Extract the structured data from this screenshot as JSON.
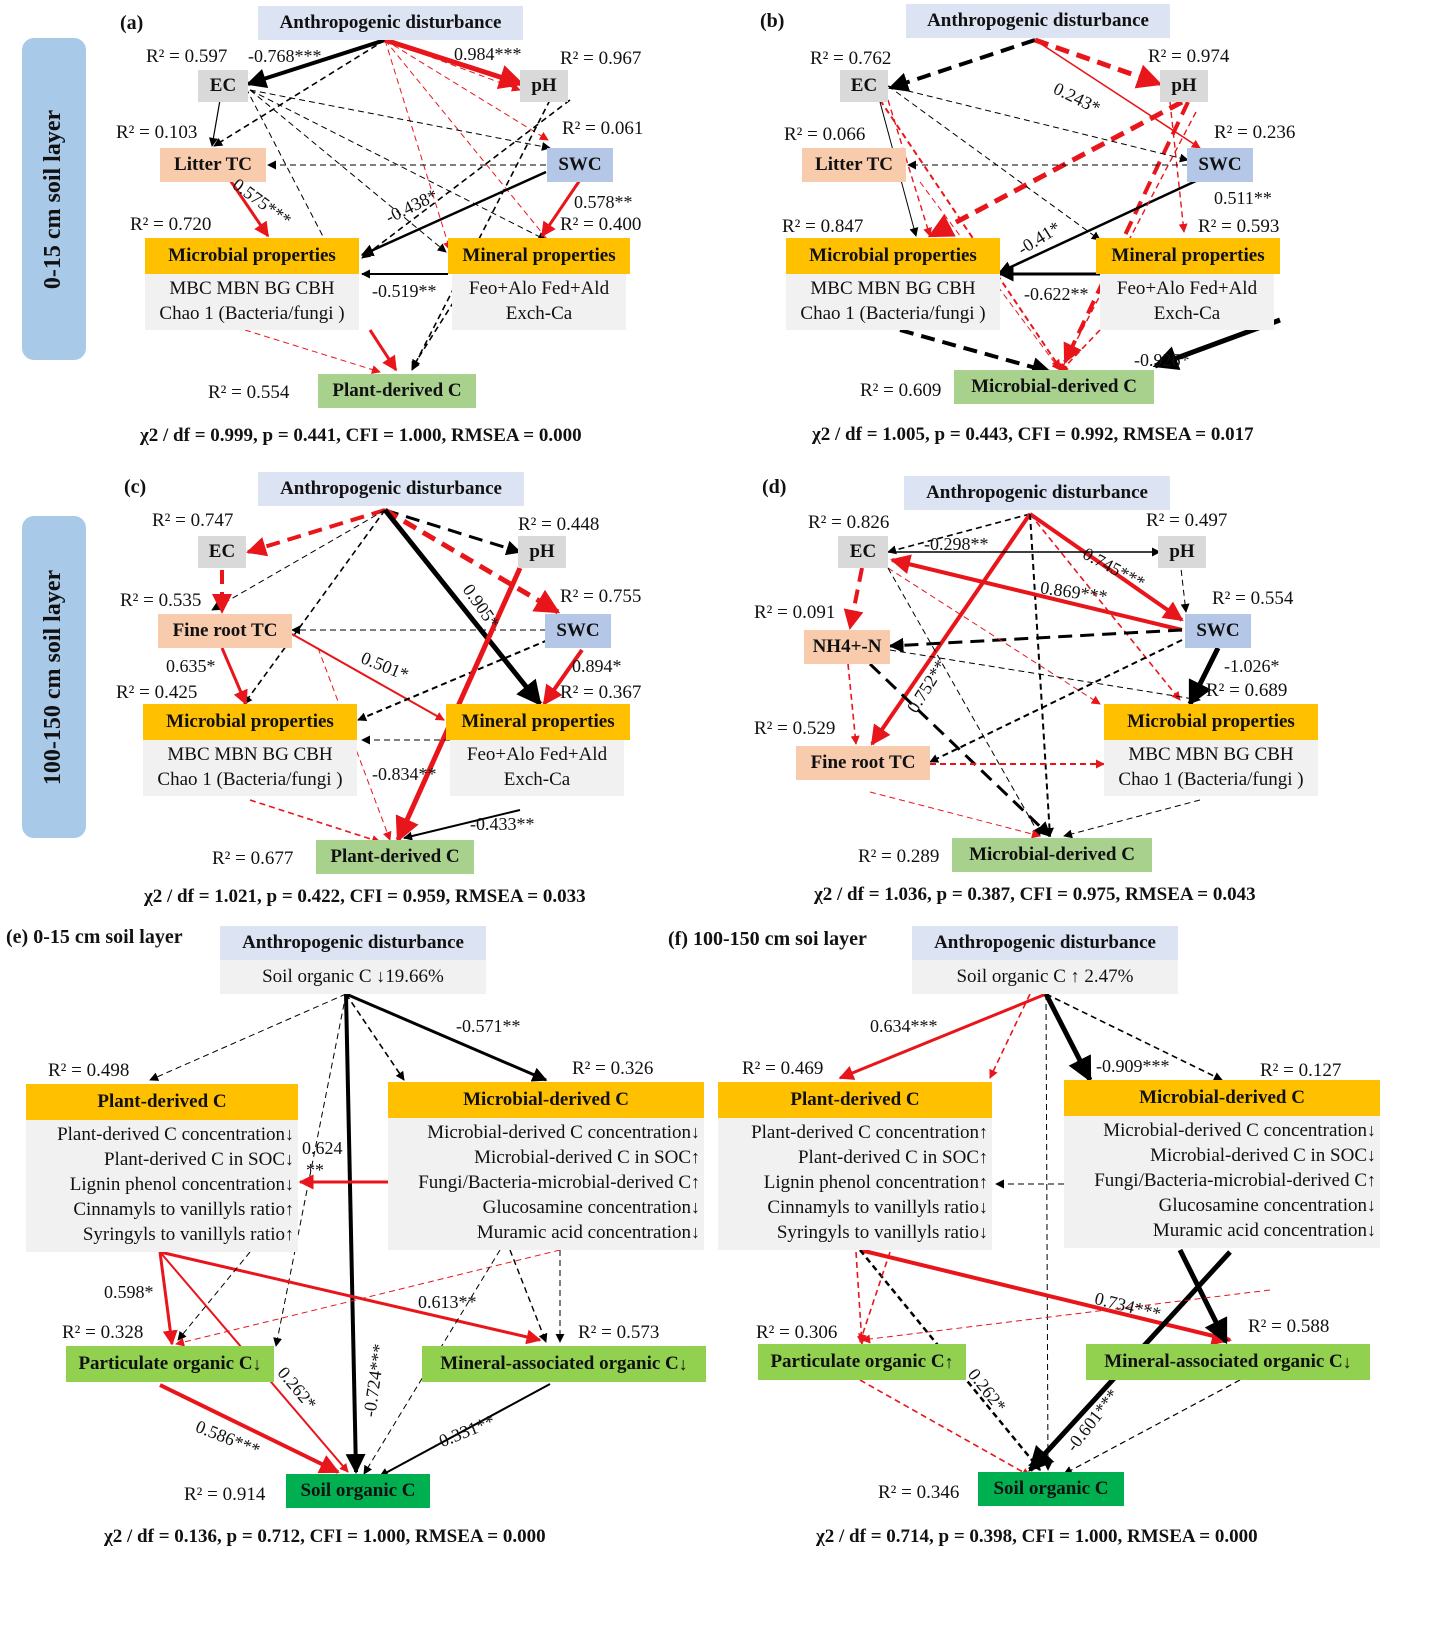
{
  "side_labels": {
    "top": "0-15 cm soil layer",
    "bottom": "100-150 cm soil layer"
  },
  "colors": {
    "disturbance": "#dce3f2",
    "soil_prop": "#d9d9d9",
    "litter": "#f8cbad",
    "swc": "#b4c7e7",
    "orange": "#ffc000",
    "green_light": "#a9d18e",
    "green_mid": "#92d050",
    "green_dark": "#00b050",
    "red": "#e8161b",
    "black": "#000000"
  },
  "common": {
    "disturbance": "Anthropogenic disturbance",
    "ec": "EC",
    "ph": "pH",
    "swc": "SWC",
    "microbial": "Microbial properties",
    "mineral": "Mineral properties",
    "micro_sub1": "MBC MBN BG CBH",
    "micro_sub2": "Chao 1 (Bacteria/fungi )",
    "mineral_sub1": "Feo+Alo Fed+Ald",
    "mineral_sub2": "Exch-Ca",
    "plant_c": "Plant-derived C",
    "microbial_c": "Microbial-derived C",
    "litter_tc": "Litter TC",
    "fine_root_tc": "Fine root TC",
    "nh4": "NH4+-N"
  },
  "panel_a": {
    "label": "(a)",
    "r2": {
      "ec": "R² = 0.597",
      "ph": "R² = 0.967",
      "litter": "R² = 0.103",
      "swc": "R² = 0.061",
      "micro": "R² = 0.720",
      "mineral": "R² = 0.400",
      "plant": "R² = 0.554"
    },
    "coefs": [
      "-0.768***",
      "0.984***",
      "0.575***",
      "-0.438*",
      "0.578**",
      "-0.519**"
    ],
    "fit": "χ2 / df = 0.999, p = 0.441, CFI = 1.000, RMSEA = 0.000"
  },
  "panel_b": {
    "label": "(b)",
    "r2": {
      "ec": "R² = 0.762",
      "ph": "R² = 0.974",
      "litter": "R² = 0.066",
      "swc": "R² = 0.236",
      "micro": "R² = 0.847",
      "mineral": "R² = 0.593",
      "mcarbon": "R² = 0.609"
    },
    "coefs": [
      "0.243*",
      "0.511**",
      "-0.41*",
      "-0.622**",
      "-0.926*"
    ],
    "fit": "χ2 / df = 1.005, p = 0.443, CFI = 0.992, RMSEA = 0.017"
  },
  "panel_c": {
    "label": "(c)",
    "r2": {
      "ec": "R² = 0.747",
      "ph": "R² = 0.448",
      "fr": "R² = 0.535",
      "swc": "R² = 0.755",
      "micro": "R² = 0.425",
      "mineral": "R² = 0.367",
      "plant": "R² = 0.677"
    },
    "coefs": [
      "0.635*",
      "0.501*",
      "0.905*",
      "0.894*",
      "-0.834**",
      "-0.433**"
    ],
    "fit": "χ2 / df = 1.021, p = 0.422, CFI = 0.959, RMSEA = 0.033"
  },
  "panel_d": {
    "label": "(d)",
    "r2": {
      "ec": "R² = 0.826",
      "ph": "R² = 0.497",
      "nh4": "R² = 0.091",
      "swc": "R² = 0.554",
      "micro": "R² = 0.689",
      "fr": "R² = 0.529",
      "mcarbon": "R² = 0.289"
    },
    "coefs": [
      "-0.298**",
      "0.745***",
      "0.869***",
      "0.752**",
      "-1.026*"
    ],
    "fit": "χ2 / df = 1.036, p = 0.387, CFI = 0.975, RMSEA = 0.043"
  },
  "panel_e": {
    "label": "(e) 0-15 cm soil layer",
    "soc_change": "Soil organic C",
    "soc_pct": "19.66%",
    "r2": {
      "plant": "R² = 0.498",
      "micro": "R² = 0.326",
      "poc": "R² = 0.328",
      "maoc": "R² = 0.573",
      "soc": "R² = 0.914"
    },
    "plant_items": [
      "Plant-derived C concentration",
      "Plant-derived C in SOC",
      "Lignin phenol concentration",
      "Cinnamyls to vanillyls ratio",
      "Syringyls  to vanillyls ratio"
    ],
    "plant_dirs": [
      "↓",
      "↓",
      "↓",
      "↑",
      "↑"
    ],
    "micro_items": [
      "Microbial-derived C concentration",
      "Microbial-derived C in SOC",
      "Fungi/Bacteria-microbial-derived C",
      "Glucosamine concentration",
      "Muramic acid concentration"
    ],
    "micro_dirs": [
      "↓",
      "↑",
      "↑",
      "↓",
      "↓"
    ],
    "poc": "Particulate organic C",
    "poc_dir": "↓",
    "maoc": "Mineral-associated organic C",
    "maoc_dir": "↓",
    "soc": "Soil organic C",
    "coefs": [
      "-0.571**",
      "0.624",
      "**",
      "0.598*",
      "0.613**",
      "0.262*",
      "-0.724***",
      "0.586***",
      "-0.331**"
    ],
    "fit": "χ2 / df = 0.136, p = 0.712, CFI = 1.000, RMSEA = 0.000"
  },
  "panel_f": {
    "label": "(f) 100-150 cm soi layer",
    "soc_change": "Soil organic C",
    "soc_pct": "2.47%",
    "r2": {
      "plant": "R² = 0.469",
      "micro": "R² = 0.127",
      "poc": "R² = 0.306",
      "maoc": "R² = 0.588",
      "soc": "R² = 0.346"
    },
    "plant_items": [
      "Plant-derived C concentration",
      "Plant-derived C in SOC",
      "Lignin phenol concentration",
      "Cinnamyls to vanillyls ratio",
      "Syringyls  to vanillyls ratio"
    ],
    "plant_dirs": [
      "↑",
      "↑",
      "↑",
      "↓",
      "↓"
    ],
    "micro_items": [
      "Microbial-derived C concentration",
      "Microbial-derived C in SOC",
      "Fungi/Bacteria-microbial-derived C",
      "Glucosamine concentration",
      "Muramic acid concentration"
    ],
    "micro_dirs": [
      "↓",
      "↓",
      "↑",
      "↓",
      "↓"
    ],
    "poc": "Particulate organic C",
    "poc_dir": "↑",
    "maoc": "Mineral-associated organic C",
    "maoc_dir": "↓",
    "soc": "Soil organic C",
    "coefs": [
      "0.634***",
      "-0.909***",
      "0.734***",
      "0.262*",
      "-0.601***"
    ],
    "fit": "χ2 / df = 0.714, p = 0.398, CFI = 1.000, RMSEA = 0.000"
  }
}
